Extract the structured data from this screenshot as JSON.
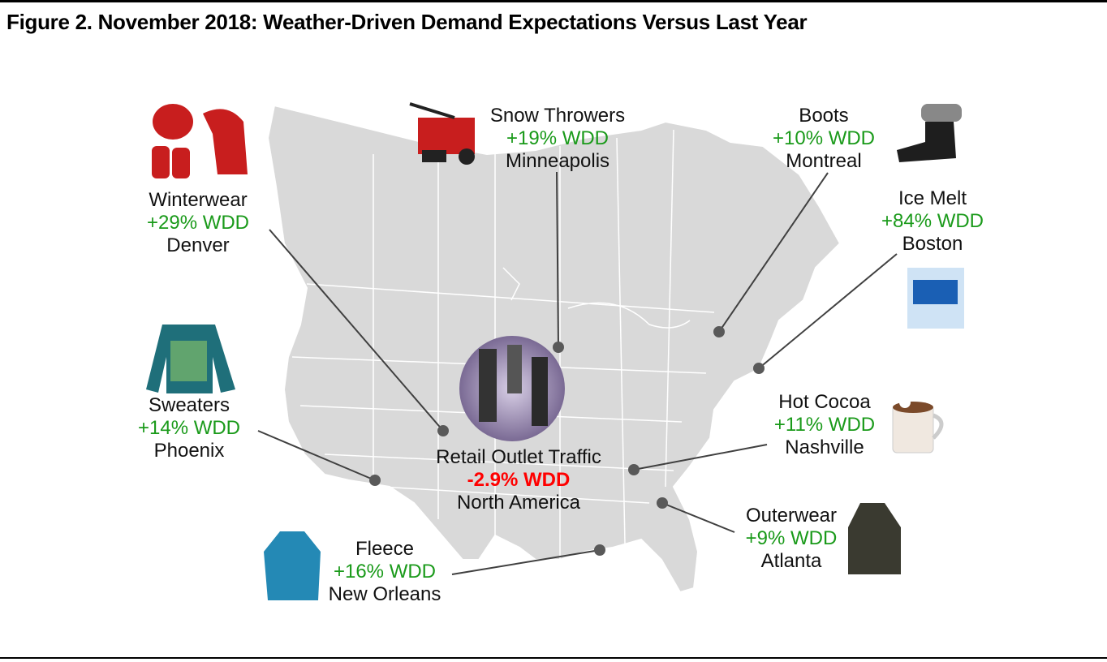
{
  "title": "Figure 2. November 2018: Weather-Driven Demand Expectations Versus Last Year",
  "callouts": [
    {
      "id": "snow-throwers",
      "product": "Snow Throwers",
      "value": "+19% WDD",
      "city": "Minneapolis",
      "icon": "snow-thrower-icon"
    },
    {
      "id": "boots",
      "product": "Boots",
      "value": "+10% WDD",
      "city": "Montreal",
      "icon": "boot-icon"
    },
    {
      "id": "winterwear",
      "product": "Winterwear",
      "value": "+29% WDD",
      "city": "Denver",
      "icon": "hat-scarf-gloves-icon"
    },
    {
      "id": "ice-melt",
      "product": "Ice Melt",
      "value": "+84% WDD",
      "city": "Boston",
      "icon": "ice-melt-bag-icon"
    },
    {
      "id": "sweaters",
      "product": "Sweaters",
      "value": "+14% WDD",
      "city": "Phoenix",
      "icon": "sweater-icon"
    },
    {
      "id": "hot-cocoa",
      "product": "Hot Cocoa",
      "value": "+11% WDD",
      "city": "Nashville",
      "icon": "cocoa-mug-icon"
    },
    {
      "id": "retail",
      "product": "Retail Outlet Traffic",
      "value": "-2.9% WDD",
      "city": "North America",
      "icon": "shoppers-icon"
    },
    {
      "id": "outerwear",
      "product": "Outerwear",
      "value": "+9% WDD",
      "city": "Atlanta",
      "icon": "jacket-icon"
    },
    {
      "id": "fleece",
      "product": "Fleece",
      "value": "+16% WDD",
      "city": "New Orleans",
      "icon": "fleece-icon"
    }
  ],
  "colors": {
    "positive": "#1a9a1a",
    "negative": "#ff0000",
    "map": "#d9d9d9",
    "border": "#ffffff",
    "dot": "#595959"
  }
}
